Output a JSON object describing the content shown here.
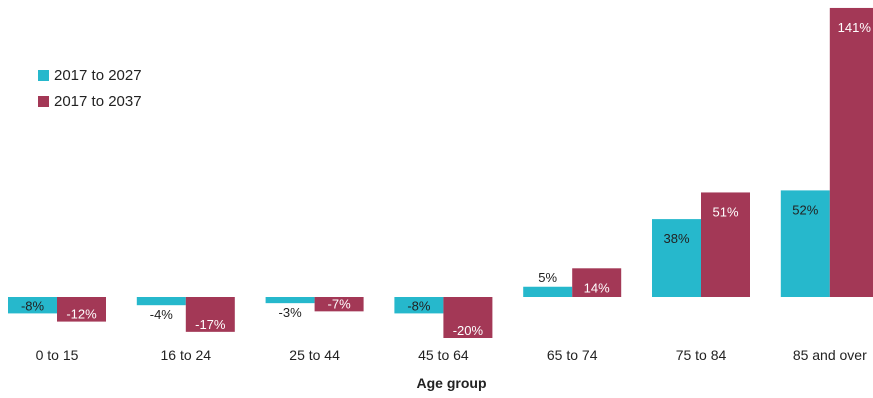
{
  "chart_data": {
    "type": "bar",
    "categories": [
      "0 to 15",
      "16 to 24",
      "25 to 44",
      "45 to 64",
      "65 to 74",
      "75 to 84",
      "85 and over"
    ],
    "series": [
      {
        "name": "2017 to 2027",
        "values": [
          -8,
          -4,
          -3,
          -8,
          5,
          38,
          52
        ],
        "labels": [
          "-8%",
          "-4%",
          "-3%",
          "-8%",
          "5%",
          "38%",
          "52%"
        ],
        "color": "#26b8cc"
      },
      {
        "name": "2017 to 2037",
        "values": [
          -12,
          -17,
          -7,
          -20,
          14,
          51,
          141
        ],
        "labels": [
          "-12%",
          "-17%",
          "-7%",
          "-20%",
          "14%",
          "51%",
          "141%"
        ],
        "color": "#a33856"
      }
    ],
    "title": "",
    "xlabel": "Age group",
    "ylabel": "",
    "ylim": [
      -20,
      141
    ],
    "grid": false,
    "legend_position": "top-left"
  }
}
